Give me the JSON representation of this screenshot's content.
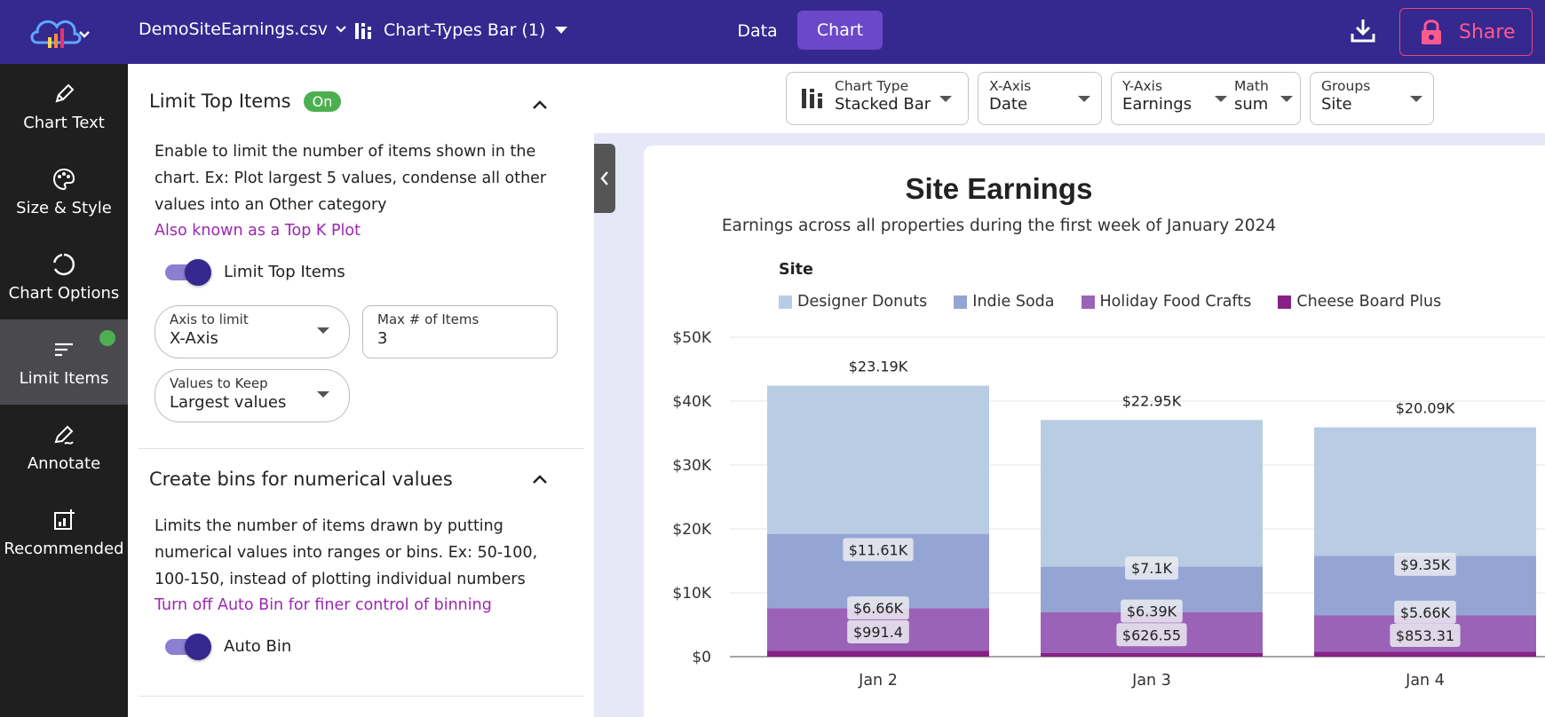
{
  "header": {
    "file_name": "DemoSiteEarnings.csv",
    "chart_name": "Chart-Types Bar (1)",
    "tab_data": "Data",
    "tab_chart": "Chart",
    "share_label": "Share"
  },
  "nav": {
    "items": [
      {
        "label": "Chart Text",
        "icon": "pencil-icon"
      },
      {
        "label": "Size & Style",
        "icon": "palette-icon"
      },
      {
        "label": "Chart Options",
        "icon": "chart-options-icon"
      },
      {
        "label": "Limit Items",
        "icon": "limit-items-icon"
      },
      {
        "label": "Annotate",
        "icon": "annotate-icon"
      },
      {
        "label": "Recommended",
        "icon": "recommended-icon"
      }
    ]
  },
  "panel": {
    "limit_section": {
      "title": "Limit Top Items",
      "badge": "On",
      "description": "Enable to limit the number of items shown in the chart. Ex: Plot largest 5 values, condense all other values into an Other category",
      "link": "Also known as a Top K Plot",
      "toggle_label": "Limit Top Items",
      "axis_label": "Axis to limit",
      "axis_value": "X-Axis",
      "max_label": "Max # of Items",
      "max_value": "3",
      "keep_label": "Values to Keep",
      "keep_value": "Largest values"
    },
    "bins_section": {
      "title": "Create bins for numerical values",
      "description": "Limits the number of items drawn by putting numerical values into ranges or bins. Ex: 50-100, 100-150, instead of plotting individual numbers",
      "link": "Turn off Auto Bin for finer control of binning",
      "toggle_label": "Auto Bin"
    }
  },
  "controls": {
    "chart_type_label": "Chart Type",
    "chart_type_value": "Stacked Bar",
    "x_axis_label": "X-Axis",
    "x_axis_value": "Date",
    "y_axis_label": "Y-Axis",
    "y_axis_value": "Earnings",
    "math_label": "Math",
    "math_value": "sum",
    "groups_label": "Groups",
    "groups_value": "Site"
  },
  "colors": {
    "topbar": "#35288f",
    "accent": "#6b48c8",
    "share": "#ff5a8f"
  },
  "chart_data": {
    "type": "bar",
    "stacked": true,
    "title": "Site Earnings",
    "subtitle": "Earnings across all properties during the first week of January 2024",
    "legend_title": "Site",
    "legend_position": "top",
    "categories": [
      "Jan 2",
      "Jan 3",
      "Jan 4"
    ],
    "series": [
      {
        "name": "Cheese Board Plus",
        "color": "#862287",
        "values": [
          0.95,
          0.6,
          0.8
        ]
      },
      {
        "name": "Holiday Food Crafts",
        "color": "#9b63b8",
        "values": [
          6.66,
          6.39,
          5.66
        ],
        "labels": [
          "$6.66K",
          "$6.39K",
          "$5.66K"
        ]
      },
      {
        "name": "Indie Soda",
        "color": "#95a5d3",
        "values": [
          11.61,
          7.1,
          9.35
        ],
        "labels": [
          "$11.61K",
          "$7.1K",
          "$9.35K"
        ]
      },
      {
        "name": "Designer Donuts",
        "color": "#b8cde4",
        "values": [
          23.19,
          22.95,
          20.09
        ],
        "labels": [
          "$23.19K",
          "$22.95K",
          "$20.09K"
        ]
      }
    ],
    "legend_order": [
      "Designer Donuts",
      "Indie Soda",
      "Holiday Food Crafts",
      "Cheese Board Plus"
    ],
    "inner_labels": [
      {
        "series": "Holiday Food Crafts",
        "texts": [
          "$991.4",
          "$626.55",
          "$853.31"
        ]
      }
    ],
    "ylim": [
      0,
      50
    ],
    "yticks": [
      "$0",
      "$10K",
      "$20K",
      "$30K",
      "$40K",
      "$50K"
    ],
    "ytick_values": [
      0,
      10,
      20,
      30,
      40,
      50
    ],
    "grid": true
  }
}
